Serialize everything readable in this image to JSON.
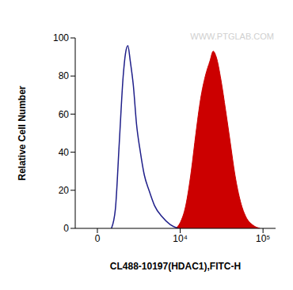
{
  "chart_data": {
    "type": "line",
    "x_label": "CL488-10197(HDAC1),FITC-H",
    "y_label": "Relative Cell Number",
    "annotations": [
      "WWW.PTGLAB.COM"
    ],
    "log": "x",
    "grid": false,
    "xlim": [
      -1000,
      140000
    ],
    "xticks": [
      0,
      {
        "value": 10000,
        "label": "10⁴"
      },
      {
        "value": 100000,
        "label": "10⁵"
      }
    ],
    "ylim": [
      0,
      100
    ],
    "yticks": [
      0,
      20,
      40,
      60,
      80,
      100
    ],
    "series": [
      {
        "type": "line",
        "color": "#1f1f8a",
        "x": [
          565,
          764,
          985,
          1229,
          1388,
          1557,
          1737,
          1996,
          2276,
          2662,
          3091,
          3665,
          4436,
          5745,
          7355,
          9340
        ],
        "values": [
          0,
          10,
          45,
          80,
          92,
          96,
          88,
          75,
          55,
          40,
          28,
          20,
          12,
          6,
          2,
          0
        ]
      },
      {
        "type": "area",
        "color": "#cc0000",
        "x": [
          8700,
          10000,
          11790,
          13830,
          15820,
          18080,
          20650,
          23550,
          25700,
          28040,
          31910,
          36290,
          41250,
          46880,
          54480,
          63150,
          74750,
          92200
        ],
        "values": [
          0,
          3,
          12,
          30,
          50,
          68,
          80,
          88,
          93,
          90,
          78,
          62,
          45,
          28,
          14,
          6,
          2,
          0
        ]
      }
    ]
  }
}
